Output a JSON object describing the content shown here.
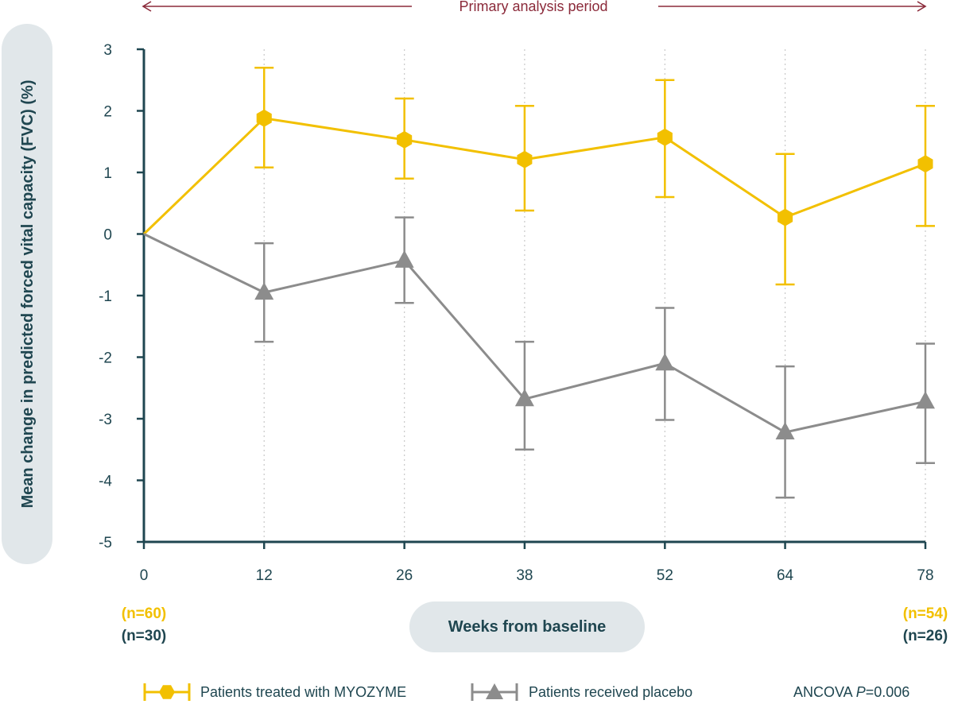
{
  "chart_data": {
    "type": "line",
    "period_label": "Primary analysis period",
    "ylabel": "Mean change in predicted forced vital capacity (FVC) (%)",
    "xlabel": "Weeks from baseline",
    "ylim": [
      -5,
      3
    ],
    "y_ticks": [
      "3",
      "2",
      "1",
      "0",
      "-1",
      "-2",
      "-3",
      "-4",
      "-5"
    ],
    "x_ticks": [
      "0",
      "12",
      "26",
      "38",
      "52",
      "64",
      "78"
    ],
    "x": [
      0,
      12,
      26,
      38,
      52,
      64,
      78
    ],
    "grid": "vertical dotted",
    "series": [
      {
        "name": "Patients treated with MYOZYME",
        "color": "#f2c000",
        "marker": "hexagon",
        "values": [
          0,
          1.88,
          1.53,
          1.21,
          1.57,
          0.27,
          1.14
        ],
        "err_upper": [
          null,
          2.7,
          2.2,
          2.08,
          2.5,
          1.3,
          2.08
        ],
        "err_lower": [
          null,
          1.08,
          0.9,
          0.38,
          0.6,
          -0.82,
          0.13
        ]
      },
      {
        "name": "Patients received placebo",
        "color": "#8c8c8c",
        "marker": "triangle",
        "values": [
          0,
          -0.95,
          -0.43,
          -2.68,
          -2.1,
          -3.22,
          -2.72
        ],
        "err_upper": [
          null,
          -0.15,
          0.27,
          -1.75,
          -1.2,
          -2.15,
          -1.78
        ],
        "err_lower": [
          null,
          -1.75,
          -1.12,
          -3.5,
          -3.02,
          -4.28,
          -3.72
        ]
      }
    ],
    "n_counts": {
      "start": [
        "(n=60)",
        "(n=30)"
      ],
      "end": [
        "(n=54)",
        "(n=26)"
      ]
    },
    "stat_prefix": "ANCOVA ",
    "stat_italic": "P",
    "stat_value": "=0.006",
    "legend_position": "bottom"
  },
  "colors": {
    "axis": "#1f4650",
    "pill": "#e1e7ea",
    "period": "#8b2a3a",
    "grid": "#c8c8c8"
  }
}
